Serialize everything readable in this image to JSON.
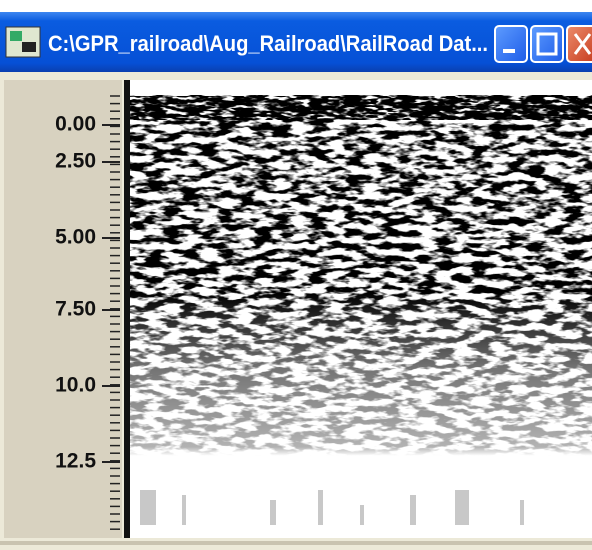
{
  "window": {
    "title": "C:\\GPR_railroad\\Aug_Railroad\\RailRoad Dat..."
  },
  "depth_axis": {
    "labels": [
      "0.00",
      "2.50",
      "5.00",
      "7.50",
      "10.0",
      "12.5"
    ]
  }
}
